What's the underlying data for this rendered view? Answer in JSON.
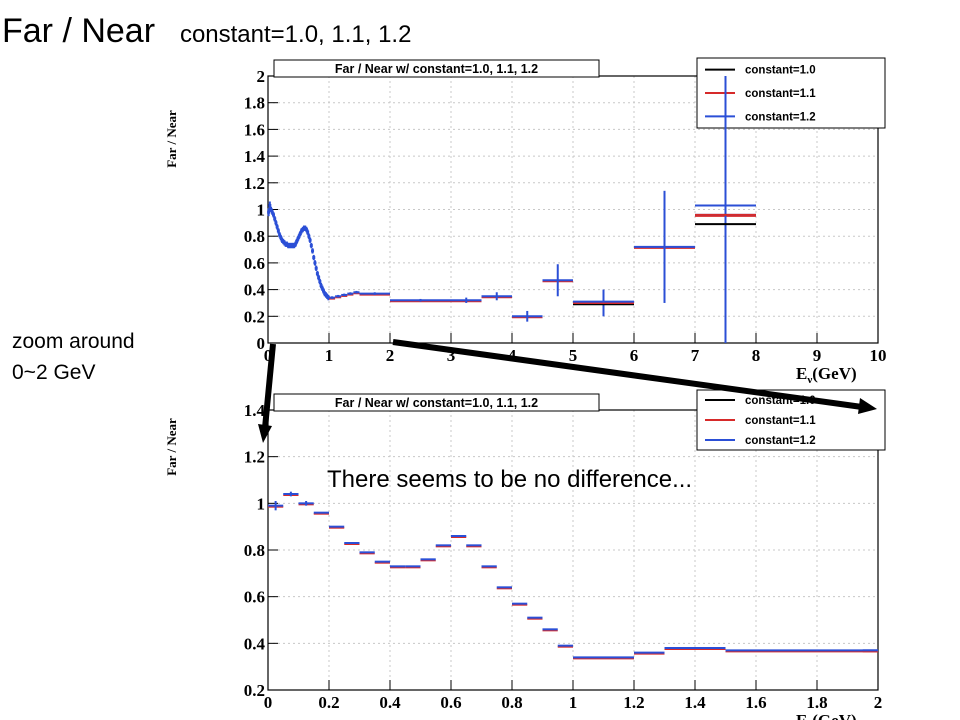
{
  "slide": {
    "title_main": "Far / Near",
    "title_sub": "constant=1.0, 1.1, 1.2",
    "zoom_note_line1": "zoom around",
    "zoom_note_line2": "0~2 GeV",
    "comment": "There seems to be no difference..."
  },
  "colors": {
    "c10": "#000000",
    "c11": "#d62a2a",
    "c12": "#2b4fd6",
    "grid": "#c8c8c8"
  },
  "chart_data": [
    {
      "type": "scatter",
      "title": "Far / Near w/ constant=1.0, 1.1, 1.2",
      "ylabel": "Far / Near",
      "xlabel_main": "E",
      "xlabel_sub": "ν",
      "xlabel_unit": "(GeV)",
      "xlim": [
        0,
        10
      ],
      "ylim": [
        0,
        2
      ],
      "grid": true,
      "legend_position": "top-right",
      "legend": [
        "constant=1.0",
        "constant=1.1",
        "constant=1.2"
      ],
      "xticks": [
        "0",
        "1",
        "2",
        "3",
        "4",
        "5",
        "6",
        "7",
        "8",
        "9",
        "10"
      ],
      "yticks": [
        "0",
        "0.2",
        "0.4",
        "0.6",
        "0.8",
        "1",
        "1.2",
        "1.4",
        "1.6",
        "1.8",
        "2"
      ],
      "points": [
        {
          "x": 0.01,
          "xerr": 0.01,
          "y": 0.98,
          "yerr": 0.03
        },
        {
          "x": 0.03,
          "xerr": 0.01,
          "y": 1.03,
          "yerr": 0.03
        },
        {
          "x": 0.05,
          "xerr": 0.01,
          "y": 1.0,
          "yerr": 0.02
        },
        {
          "x": 0.07,
          "xerr": 0.01,
          "y": 0.98,
          "yerr": 0.02
        },
        {
          "x": 0.09,
          "xerr": 0.01,
          "y": 0.96,
          "yerr": 0.02
        },
        {
          "x": 0.11,
          "xerr": 0.01,
          "y": 0.93,
          "yerr": 0.02
        },
        {
          "x": 0.13,
          "xerr": 0.01,
          "y": 0.9,
          "yerr": 0.02
        },
        {
          "x": 0.15,
          "xerr": 0.01,
          "y": 0.87,
          "yerr": 0.02
        },
        {
          "x": 0.17,
          "xerr": 0.01,
          "y": 0.84,
          "yerr": 0.02
        },
        {
          "x": 0.19,
          "xerr": 0.01,
          "y": 0.81,
          "yerr": 0.02
        },
        {
          "x": 0.21,
          "xerr": 0.01,
          "y": 0.79,
          "yerr": 0.02
        },
        {
          "x": 0.23,
          "xerr": 0.01,
          "y": 0.77,
          "yerr": 0.02
        },
        {
          "x": 0.25,
          "xerr": 0.01,
          "y": 0.76,
          "yerr": 0.02
        },
        {
          "x": 0.27,
          "xerr": 0.01,
          "y": 0.75,
          "yerr": 0.02
        },
        {
          "x": 0.29,
          "xerr": 0.01,
          "y": 0.74,
          "yerr": 0.02
        },
        {
          "x": 0.31,
          "xerr": 0.01,
          "y": 0.74,
          "yerr": 0.02
        },
        {
          "x": 0.33,
          "xerr": 0.01,
          "y": 0.73,
          "yerr": 0.02
        },
        {
          "x": 0.35,
          "xerr": 0.01,
          "y": 0.73,
          "yerr": 0.02
        },
        {
          "x": 0.37,
          "xerr": 0.01,
          "y": 0.73,
          "yerr": 0.02
        },
        {
          "x": 0.39,
          "xerr": 0.01,
          "y": 0.73,
          "yerr": 0.02
        },
        {
          "x": 0.41,
          "xerr": 0.01,
          "y": 0.73,
          "yerr": 0.02
        },
        {
          "x": 0.43,
          "xerr": 0.01,
          "y": 0.73,
          "yerr": 0.02
        },
        {
          "x": 0.45,
          "xerr": 0.01,
          "y": 0.74,
          "yerr": 0.02
        },
        {
          "x": 0.47,
          "xerr": 0.01,
          "y": 0.76,
          "yerr": 0.02
        },
        {
          "x": 0.49,
          "xerr": 0.01,
          "y": 0.78,
          "yerr": 0.02
        },
        {
          "x": 0.51,
          "xerr": 0.01,
          "y": 0.8,
          "yerr": 0.02
        },
        {
          "x": 0.53,
          "xerr": 0.01,
          "y": 0.82,
          "yerr": 0.02
        },
        {
          "x": 0.55,
          "xerr": 0.01,
          "y": 0.84,
          "yerr": 0.02
        },
        {
          "x": 0.57,
          "xerr": 0.01,
          "y": 0.85,
          "yerr": 0.02
        },
        {
          "x": 0.59,
          "xerr": 0.01,
          "y": 0.86,
          "yerr": 0.02
        },
        {
          "x": 0.61,
          "xerr": 0.01,
          "y": 0.86,
          "yerr": 0.02
        },
        {
          "x": 0.63,
          "xerr": 0.01,
          "y": 0.85,
          "yerr": 0.02
        },
        {
          "x": 0.65,
          "xerr": 0.01,
          "y": 0.83,
          "yerr": 0.02
        },
        {
          "x": 0.67,
          "xerr": 0.01,
          "y": 0.8,
          "yerr": 0.02
        },
        {
          "x": 0.69,
          "xerr": 0.01,
          "y": 0.77,
          "yerr": 0.02
        },
        {
          "x": 0.71,
          "xerr": 0.01,
          "y": 0.73,
          "yerr": 0.02
        },
        {
          "x": 0.73,
          "xerr": 0.01,
          "y": 0.69,
          "yerr": 0.02
        },
        {
          "x": 0.75,
          "xerr": 0.01,
          "y": 0.64,
          "yerr": 0.02
        },
        {
          "x": 0.77,
          "xerr": 0.01,
          "y": 0.6,
          "yerr": 0.02
        },
        {
          "x": 0.79,
          "xerr": 0.01,
          "y": 0.56,
          "yerr": 0.02
        },
        {
          "x": 0.81,
          "xerr": 0.01,
          "y": 0.52,
          "yerr": 0.02
        },
        {
          "x": 0.83,
          "xerr": 0.01,
          "y": 0.49,
          "yerr": 0.02
        },
        {
          "x": 0.85,
          "xerr": 0.01,
          "y": 0.46,
          "yerr": 0.02
        },
        {
          "x": 0.87,
          "xerr": 0.01,
          "y": 0.43,
          "yerr": 0.02
        },
        {
          "x": 0.89,
          "xerr": 0.01,
          "y": 0.41,
          "yerr": 0.02
        },
        {
          "x": 0.91,
          "xerr": 0.01,
          "y": 0.39,
          "yerr": 0.02
        },
        {
          "x": 0.93,
          "xerr": 0.01,
          "y": 0.37,
          "yerr": 0.02
        },
        {
          "x": 0.95,
          "xerr": 0.01,
          "y": 0.36,
          "yerr": 0.02
        },
        {
          "x": 0.97,
          "xerr": 0.01,
          "y": 0.35,
          "yerr": 0.02
        },
        {
          "x": 0.99,
          "xerr": 0.01,
          "y": 0.34,
          "yerr": 0.02
        },
        {
          "x": 1.05,
          "xerr": 0.05,
          "y": 0.34,
          "yerr": 0.01
        },
        {
          "x": 1.15,
          "xerr": 0.05,
          "y": 0.35,
          "yerr": 0.01
        },
        {
          "x": 1.25,
          "xerr": 0.05,
          "y": 0.36,
          "yerr": 0.01
        },
        {
          "x": 1.35,
          "xerr": 0.05,
          "y": 0.37,
          "yerr": 0.01
        },
        {
          "x": 1.45,
          "xerr": 0.05,
          "y": 0.38,
          "yerr": 0.01
        },
        {
          "x": 1.75,
          "xerr": 0.25,
          "y": 0.37,
          "yerr": 0.01
        },
        {
          "x": 2.5,
          "xerr": 0.5,
          "y": 0.32,
          "yerr": 0.01
        },
        {
          "x": 3.25,
          "xerr": 0.25,
          "y": 0.32,
          "yerr": 0.02
        },
        {
          "x": 3.75,
          "xerr": 0.25,
          "y": 0.35,
          "yerr": 0.03
        },
        {
          "x": 4.25,
          "xerr": 0.25,
          "y": 0.2,
          "yerr": 0.04
        },
        {
          "x": 4.75,
          "xerr": 0.25,
          "y": 0.47,
          "yerr": 0.12
        },
        {
          "x": 5.5,
          "xerr": 0.5,
          "y": 0.3,
          "yerr": 0.1
        },
        {
          "x": 6.5,
          "xerr": 0.5,
          "y": 0.72,
          "yerr": 0.42
        },
        {
          "x": 7.5,
          "xerr": 0.5,
          "y": 0.96,
          "yerr": 1.1
        }
      ],
      "high_energy_values": [
        {
          "x": 5.5,
          "xerr": 0.5,
          "c10": 0.29,
          "c11": 0.3,
          "c12": 0.31
        },
        {
          "x": 7.5,
          "xerr": 0.5,
          "c10": 0.89,
          "c11": 0.96,
          "c12": 1.03
        }
      ]
    },
    {
      "type": "scatter",
      "title": "Far / Near w/ constant=1.0, 1.1, 1.2",
      "ylabel": "Far / Near",
      "xlabel_main": "E",
      "xlabel_sub": "ν",
      "xlabel_unit": "(GeV)",
      "xlim": [
        0,
        2
      ],
      "ylim": [
        0.2,
        1.4
      ],
      "grid": true,
      "legend_position": "top-right",
      "legend": [
        "constant=1.0",
        "constant=1.1",
        "constant=1.2"
      ],
      "xticks": [
        "0",
        "0.2",
        "0.4",
        "0.6",
        "0.8",
        "1",
        "1.2",
        "1.4",
        "1.6",
        "1.8",
        "2"
      ],
      "yticks": [
        "0.2",
        "0.4",
        "0.6",
        "0.8",
        "1",
        "1.2",
        "1.4"
      ],
      "points": [
        {
          "x": 0.025,
          "xerr": 0.025,
          "y": 0.99,
          "yerr": 0.02
        },
        {
          "x": 0.075,
          "xerr": 0.025,
          "y": 1.04,
          "yerr": 0.01
        },
        {
          "x": 0.125,
          "xerr": 0.025,
          "y": 1.0,
          "yerr": 0.01
        },
        {
          "x": 0.175,
          "xerr": 0.025,
          "y": 0.96,
          "yerr": 0.0
        },
        {
          "x": 0.225,
          "xerr": 0.025,
          "y": 0.9,
          "yerr": 0.0
        },
        {
          "x": 0.275,
          "xerr": 0.025,
          "y": 0.83,
          "yerr": 0.0
        },
        {
          "x": 0.325,
          "xerr": 0.025,
          "y": 0.79,
          "yerr": 0.0
        },
        {
          "x": 0.375,
          "xerr": 0.025,
          "y": 0.75,
          "yerr": 0.0
        },
        {
          "x": 0.425,
          "xerr": 0.025,
          "y": 0.73,
          "yerr": 0.0
        },
        {
          "x": 0.475,
          "xerr": 0.025,
          "y": 0.73,
          "yerr": 0.0
        },
        {
          "x": 0.525,
          "xerr": 0.025,
          "y": 0.76,
          "yerr": 0.0
        },
        {
          "x": 0.575,
          "xerr": 0.025,
          "y": 0.82,
          "yerr": 0.0
        },
        {
          "x": 0.625,
          "xerr": 0.025,
          "y": 0.86,
          "yerr": 0.0
        },
        {
          "x": 0.675,
          "xerr": 0.025,
          "y": 0.82,
          "yerr": 0.0
        },
        {
          "x": 0.725,
          "xerr": 0.025,
          "y": 0.73,
          "yerr": 0.0
        },
        {
          "x": 0.775,
          "xerr": 0.025,
          "y": 0.64,
          "yerr": 0.0
        },
        {
          "x": 0.825,
          "xerr": 0.025,
          "y": 0.57,
          "yerr": 0.0
        },
        {
          "x": 0.875,
          "xerr": 0.025,
          "y": 0.51,
          "yerr": 0.0
        },
        {
          "x": 0.925,
          "xerr": 0.025,
          "y": 0.46,
          "yerr": 0.0
        },
        {
          "x": 0.975,
          "xerr": 0.025,
          "y": 0.39,
          "yerr": 0.0
        },
        {
          "x": 1.05,
          "xerr": 0.05,
          "y": 0.34,
          "yerr": 0.0
        },
        {
          "x": 1.15,
          "xerr": 0.05,
          "y": 0.34,
          "yerr": 0.0
        },
        {
          "x": 1.25,
          "xerr": 0.05,
          "y": 0.36,
          "yerr": 0.0
        },
        {
          "x": 1.35,
          "xerr": 0.05,
          "y": 0.38,
          "yerr": 0.0
        },
        {
          "x": 1.45,
          "xerr": 0.05,
          "y": 0.38,
          "yerr": 0.0
        },
        {
          "x": 1.75,
          "xerr": 0.25,
          "y": 0.37,
          "yerr": 0.0
        },
        {
          "x": 2.0,
          "xerr": 0.05,
          "y": 0.37,
          "yerr": 0.0
        }
      ]
    }
  ]
}
